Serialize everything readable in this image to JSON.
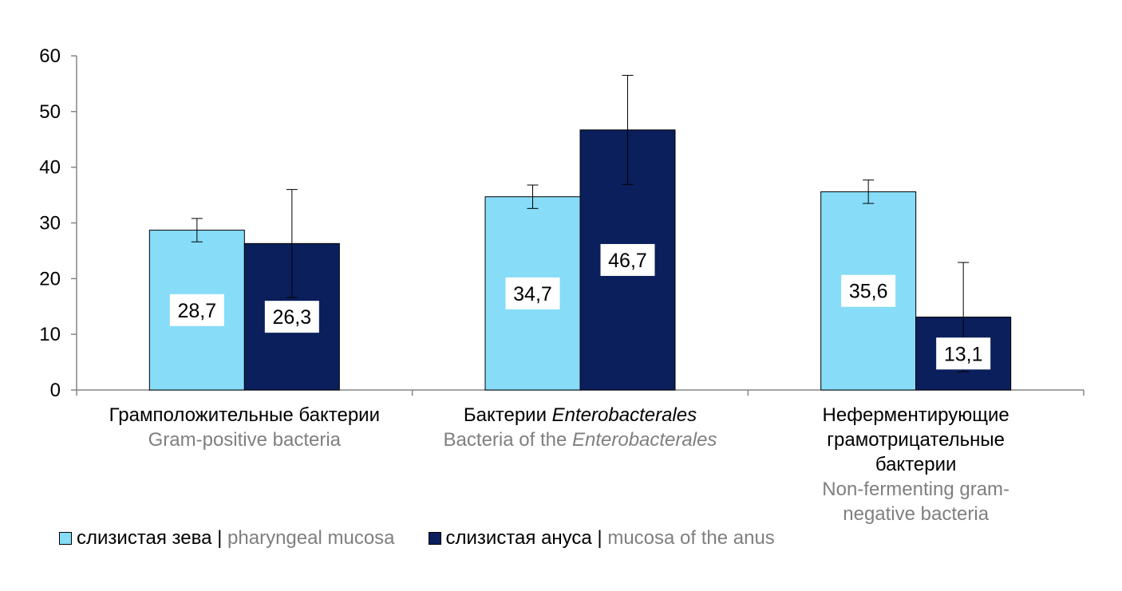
{
  "chart_data": {
    "type": "bar",
    "title": "",
    "xlabel": "",
    "ylabel": "",
    "ylim": [
      0,
      60
    ],
    "yticks": [
      0,
      10,
      20,
      30,
      40,
      50,
      60
    ],
    "grid": false,
    "legend_position": "bottom-left",
    "categories": [
      {
        "ru_parts": [
          {
            "text": "Грамположительные бактерии",
            "italic": false
          }
        ],
        "en_parts": [
          {
            "text": "Gram-positive bacteria",
            "italic": false
          }
        ]
      },
      {
        "ru_parts": [
          {
            "text": "Бактерии ",
            "italic": false
          },
          {
            "text": "Enterobacterales",
            "italic": true
          }
        ],
        "en_parts": [
          {
            "text": "Bacteria of the ",
            "italic": false
          },
          {
            "text": "Enterobacterales",
            "italic": true
          }
        ]
      },
      {
        "ru_parts": [
          {
            "text": "Неферментирующие грамотрицательные бактерии",
            "italic": false
          }
        ],
        "en_parts": [
          {
            "text": "Non-fermenting gram-negative bacteria",
            "italic": false
          }
        ]
      }
    ],
    "series": [
      {
        "name_ru": "слизистая зева",
        "name_en": "pharyngeal mucosa",
        "color": "#87dcf7",
        "values": [
          28.7,
          34.7,
          35.6
        ],
        "labels": [
          "28,7",
          "34,7",
          "35,6"
        ],
        "error_low": [
          26.6,
          32.6,
          33.5
        ],
        "error_high": [
          30.8,
          36.8,
          37.7
        ]
      },
      {
        "name_ru": "слизистая ануса",
        "name_en": "mucosa of the anus",
        "color": "#0a1f5c",
        "values": [
          26.3,
          46.7,
          13.1
        ],
        "labels": [
          "26,3",
          "46,7",
          "13,1"
        ],
        "error_low": [
          16.6,
          36.9,
          3.3
        ],
        "error_high": [
          36.0,
          56.5,
          22.9
        ]
      }
    ]
  },
  "legend": {
    "separator": "|"
  }
}
